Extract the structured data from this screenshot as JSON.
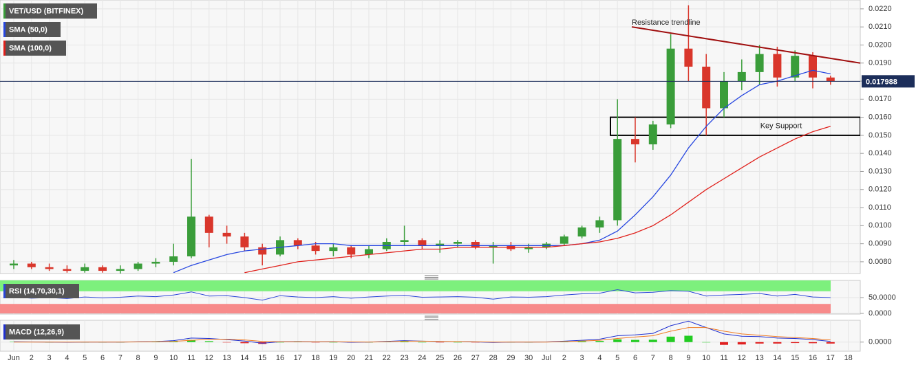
{
  "chart_data": {
    "type": "candlestick",
    "title": "VET/USD (BITFINEX)",
    "categories": [
      "Jun",
      "2",
      "3",
      "4",
      "5",
      "6",
      "7",
      "8",
      "9",
      "10",
      "11",
      "12",
      "13",
      "14",
      "15",
      "16",
      "17",
      "18",
      "19",
      "20",
      "21",
      "22",
      "23",
      "24",
      "25",
      "26",
      "27",
      "28",
      "29",
      "30",
      "Jul",
      "2",
      "3",
      "4",
      "5",
      "6",
      "7",
      "8",
      "9",
      "10",
      "11",
      "12",
      "13",
      "14",
      "15",
      "16",
      "17",
      "18"
    ],
    "candles": {
      "up_color": "#3a9d3a",
      "down_color": "#d9362b",
      "open": [
        0.0078,
        0.0079,
        0.0077,
        0.0076,
        0.0075,
        0.0077,
        0.0075,
        0.0076,
        0.0079,
        0.008,
        0.0083,
        0.0105,
        0.0096,
        0.0094,
        0.0088,
        0.0084,
        0.0092,
        0.0089,
        0.0086,
        0.0088,
        0.0084,
        0.0087,
        0.0091,
        0.0092,
        0.0089,
        0.009,
        0.0091,
        0.0088,
        0.0089,
        0.0087,
        0.0088,
        0.009,
        0.0094,
        0.0099,
        0.0103,
        0.0148,
        0.0145,
        0.0156,
        0.0198,
        0.0188,
        0.0165,
        0.018,
        0.0185,
        0.0195,
        0.0182,
        0.0194,
        0.0182,
        null
      ],
      "high": [
        0.0081,
        0.008,
        0.0079,
        0.0078,
        0.0079,
        0.0078,
        0.0078,
        0.008,
        0.0082,
        0.009,
        0.0137,
        0.0106,
        0.01,
        0.0096,
        0.009,
        0.0094,
        0.0093,
        0.0091,
        0.009,
        0.0089,
        0.0089,
        0.0093,
        0.01,
        0.0093,
        0.0092,
        0.0092,
        0.0092,
        0.0091,
        0.0091,
        0.009,
        0.0091,
        0.0095,
        0.01,
        0.0105,
        0.017,
        0.016,
        0.0158,
        0.0206,
        0.0222,
        0.0195,
        0.0185,
        0.0192,
        0.02,
        0.0199,
        0.0197,
        0.0196,
        0.0183,
        null
      ],
      "low": [
        0.0076,
        0.0076,
        0.0075,
        0.0074,
        0.0074,
        0.0074,
        0.0073,
        0.0075,
        0.0077,
        0.0078,
        0.0082,
        0.0088,
        0.009,
        0.0086,
        0.0078,
        0.0083,
        0.0087,
        0.0084,
        0.0083,
        0.0082,
        0.0082,
        0.0086,
        0.0089,
        0.0087,
        0.0085,
        0.0088,
        0.0087,
        0.0079,
        0.0086,
        0.0085,
        0.0087,
        0.0089,
        0.0093,
        0.0096,
        0.01,
        0.0135,
        0.0142,
        0.0154,
        0.018,
        0.015,
        0.016,
        0.0175,
        0.0178,
        0.0177,
        0.018,
        0.0176,
        0.0178,
        null
      ],
      "close": [
        0.0079,
        0.0077,
        0.0076,
        0.0075,
        0.0077,
        0.0075,
        0.0076,
        0.0079,
        0.008,
        0.0083,
        0.0105,
        0.0096,
        0.0094,
        0.0088,
        0.0084,
        0.0092,
        0.0089,
        0.0086,
        0.0088,
        0.0084,
        0.0087,
        0.0091,
        0.0092,
        0.0089,
        0.009,
        0.0091,
        0.0088,
        0.0089,
        0.0087,
        0.0088,
        0.009,
        0.0094,
        0.0099,
        0.0103,
        0.0148,
        0.0145,
        0.0156,
        0.0198,
        0.0188,
        0.0165,
        0.018,
        0.0185,
        0.0195,
        0.0182,
        0.0194,
        0.0182,
        0.017988,
        null
      ]
    },
    "series": [
      {
        "name": "SMA (50,0)",
        "color": "#2747e0",
        "values": [
          null,
          null,
          null,
          null,
          null,
          null,
          null,
          null,
          null,
          0.0074,
          0.0078,
          0.0081,
          0.0084,
          0.0086,
          0.0087,
          0.0088,
          0.0089,
          0.009,
          0.009,
          0.0089,
          0.0089,
          0.0089,
          0.0089,
          0.0089,
          0.0089,
          0.0089,
          0.0089,
          0.0089,
          0.0089,
          0.0089,
          0.0089,
          0.0089,
          0.009,
          0.0092,
          0.0097,
          0.0106,
          0.0116,
          0.0128,
          0.0143,
          0.0155,
          0.0165,
          0.0172,
          0.0178,
          0.018,
          0.0183,
          0.0186,
          0.0184,
          null
        ]
      },
      {
        "name": "SMA (100,0)",
        "color": "#e0201b",
        "values": [
          null,
          null,
          null,
          null,
          null,
          null,
          null,
          null,
          null,
          null,
          null,
          null,
          null,
          0.0074,
          0.0076,
          0.0078,
          0.008,
          0.0081,
          0.0082,
          0.0083,
          0.0084,
          0.0085,
          0.0086,
          0.0087,
          0.0087,
          0.0088,
          0.0088,
          0.0088,
          0.0088,
          0.0088,
          0.0088,
          0.0089,
          0.009,
          0.0091,
          0.0093,
          0.0096,
          0.01,
          0.0106,
          0.0113,
          0.012,
          0.0126,
          0.0132,
          0.0138,
          0.0143,
          0.0148,
          0.0152,
          0.0155,
          null
        ]
      }
    ],
    "ylim": [
      0.00735,
      0.02249
    ],
    "yticks": [
      {
        "value": 0.008,
        "label": "0.0080"
      },
      {
        "value": 0.009,
        "label": "0.0090"
      },
      {
        "value": 0.01,
        "label": "0.0100"
      },
      {
        "value": 0.011,
        "label": "0.0110"
      },
      {
        "value": 0.012,
        "label": "0.0120"
      },
      {
        "value": 0.013,
        "label": "0.0130"
      },
      {
        "value": 0.014,
        "label": "0.0140"
      },
      {
        "value": 0.015,
        "label": "0.0150"
      },
      {
        "value": 0.016,
        "label": "0.0160"
      },
      {
        "value": 0.017,
        "label": "0.0170"
      },
      {
        "value": 0.018,
        "label": "0.0180"
      },
      {
        "value": 0.019,
        "label": "0.0190"
      },
      {
        "value": 0.02,
        "label": "0.0200"
      },
      {
        "value": 0.021,
        "label": "0.0210"
      },
      {
        "value": 0.022,
        "label": "0.0220"
      }
    ],
    "grid": true,
    "last_price": 0.017988,
    "resistance": {
      "label": "Resistance trendline",
      "color": "#a01010",
      "values": [
        0.021,
        0.019
      ]
    },
    "support": {
      "label": "Key Support",
      "values": [
        0.015,
        0.016
      ]
    },
    "rsi": {
      "name": "RSI (14,70,30,1)",
      "color": "#2a46d8",
      "upper": 70,
      "lower": 30,
      "ylim": [
        0,
        100
      ],
      "yticks": [
        {
          "value": 50,
          "label": "50.0000"
        },
        {
          "value": 0,
          "label": "0.0000"
        }
      ],
      "values": [
        52,
        48,
        50,
        47,
        52,
        49,
        51,
        55,
        53,
        58,
        68,
        55,
        56,
        50,
        42,
        56,
        52,
        50,
        53,
        48,
        52,
        55,
        57,
        51,
        52,
        53,
        51,
        45,
        52,
        51,
        53,
        58,
        62,
        64,
        75,
        65,
        67,
        72,
        70,
        55,
        58,
        60,
        63,
        55,
        60,
        52,
        50,
        null
      ]
    },
    "macd": {
      "name": "MACD (12,26,9)",
      "ylim": [
        -0.0005,
        0.0012
      ],
      "yticks": [
        {
          "value": 0,
          "label": "0.0000"
        }
      ],
      "series": [
        {
          "color": "#2030d0",
          "values": [
            2e-05,
            1e-05,
            0,
            -1e-05,
            0,
            0,
            0,
            2e-05,
            3e-05,
            8e-05,
            0.00022,
            0.0002,
            0.00014,
            6e-05,
            -6e-05,
            2e-05,
            3e-05,
            1e-05,
            2e-05,
            -1e-05,
            0,
            4e-05,
            8e-05,
            5e-05,
            3e-05,
            3e-05,
            1e-05,
            -2e-05,
            0,
            0,
            1e-05,
            5e-05,
            0.0001,
            0.00016,
            0.00035,
            0.0004,
            0.00048,
            0.0009,
            0.00115,
            0.0008,
            0.00045,
            0.00032,
            0.0003,
            0.00022,
            0.0002,
            0.00014,
            4e-05,
            null
          ]
        },
        {
          "color": "#f07a20",
          "values": [
            0,
            0,
            0,
            0,
            0,
            0,
            0,
            1e-05,
            2e-05,
            4e-05,
            0.0001,
            0.00015,
            0.00016,
            0.00012,
            4e-05,
            2e-05,
            2e-05,
            2e-05,
            2e-05,
            1e-05,
            0,
            2e-05,
            5e-05,
            5e-05,
            4e-05,
            3e-05,
            2e-05,
            0,
            0,
            0,
            0,
            3e-05,
            6e-05,
            0.0001,
            0.0002,
            0.00028,
            0.00035,
            0.0006,
            0.0008,
            0.0008,
            0.0006,
            0.00045,
            0.00038,
            0.0003,
            0.00025,
            0.0002,
            0.00012,
            null
          ]
        }
      ],
      "histogram": {
        "up_color": "#22cc22",
        "down_color": "#e02020",
        "values": [
          2e-05,
          1e-05,
          0,
          -1e-05,
          0,
          0,
          0,
          1e-05,
          1e-05,
          4e-05,
          0.00012,
          5e-05,
          -2e-05,
          -6e-05,
          -0.0001,
          0,
          1e-05,
          -1e-05,
          0,
          -2e-05,
          0,
          2e-05,
          3e-05,
          0,
          -1e-05,
          0,
          -1e-05,
          -2e-05,
          0,
          0,
          1e-05,
          2e-05,
          4e-05,
          6e-05,
          0.00015,
          0.00012,
          0.00013,
          0.0003,
          0.00035,
          0,
          -0.00015,
          -0.00013,
          -8e-05,
          -8e-05,
          -5e-05,
          -6e-05,
          -8e-05,
          null
        ]
      }
    }
  }
}
